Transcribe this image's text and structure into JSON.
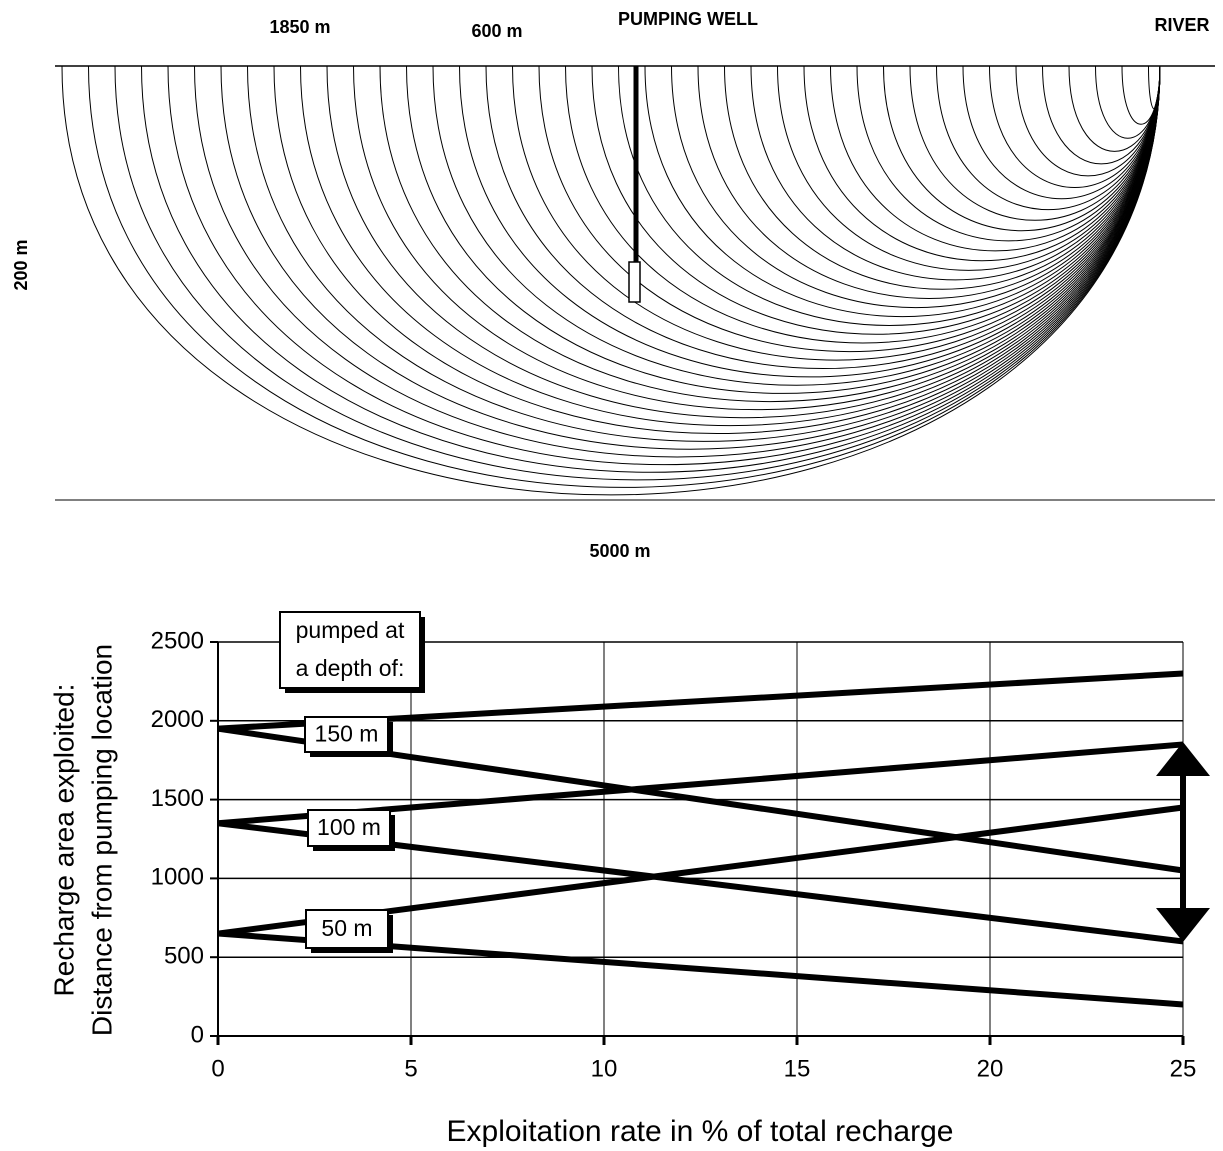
{
  "diagram": {
    "label_left_distance": "1850 m",
    "label_well_distance": "600 m",
    "label_well": "PUMPING WELL",
    "label_river": "RIVER",
    "label_depth": "200 m",
    "label_length": "5000 m"
  },
  "chart_data": {
    "type": "line",
    "xlabel": "Exploitation rate in % of total recharge",
    "ylabel": [
      "Recharge area exploited:",
      "Distance from pumping location"
    ],
    "x": [
      0,
      25
    ],
    "series": [
      {
        "color": "#000000",
        "values": [
          1950,
          2300
        ]
      },
      {
        "color": "#000000",
        "values": [
          1950,
          1050
        ]
      },
      {
        "color": "#000000",
        "values": [
          1350,
          1850
        ]
      },
      {
        "color": "#000000",
        "values": [
          1350,
          600
        ]
      },
      {
        "color": "#000000",
        "values": [
          650,
          1450
        ]
      },
      {
        "color": "#000000",
        "values": [
          650,
          200
        ]
      }
    ],
    "annotations": [
      [
        "pumped at",
        "a depth of:"
      ],
      [
        "150 m"
      ],
      [
        "100 m"
      ],
      [
        "50 m"
      ]
    ],
    "xlim": [
      0,
      25
    ],
    "xticks": [
      0,
      5,
      10,
      15,
      20,
      25
    ],
    "ylim": [
      0,
      2500
    ],
    "yticks": [
      0,
      500,
      1000,
      1500,
      2000,
      2500
    ],
    "grid": true
  }
}
